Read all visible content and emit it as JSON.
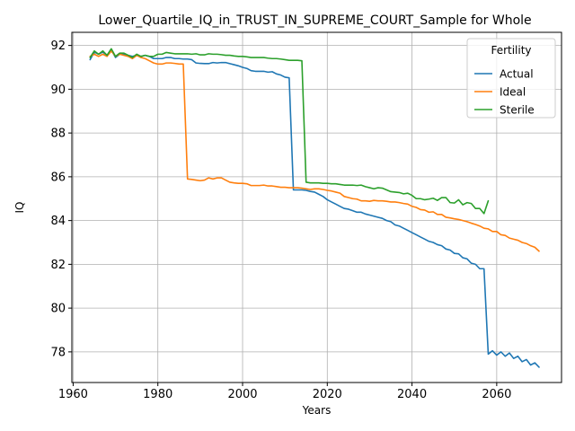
{
  "chart_data": {
    "type": "line",
    "title": "Lower_Quartile_IQ_in_TRUST_IN_SUPREME_COURT_Sample for Whole",
    "xlabel": "Years",
    "ylabel": "IQ",
    "xlim": [
      1959.7,
      2075.3
    ],
    "ylim": [
      76.6,
      92.6
    ],
    "xticks": [
      1960,
      1980,
      2000,
      2020,
      2040,
      2060
    ],
    "yticks": [
      78,
      80,
      82,
      84,
      86,
      88,
      90,
      92
    ],
    "grid": true,
    "legend": {
      "title": "Fertility",
      "position": "top-right",
      "entries": [
        "Actual",
        "Ideal",
        "Sterile"
      ]
    },
    "series": [
      {
        "name": "Actual",
        "color": "#1f77b4",
        "x": [
          1964,
          1965,
          1966,
          1967,
          1968,
          1969,
          1970,
          1971,
          1972,
          1973,
          1974,
          1975,
          1976,
          1977,
          1978,
          1979,
          1980,
          1981,
          1982,
          1983,
          1984,
          1985,
          1986,
          1987,
          1988,
          1989,
          1990,
          1991,
          1992,
          1993,
          1994,
          1995,
          1996,
          1997,
          1998,
          1999,
          2000,
          2001,
          2002,
          2003,
          2004,
          2005,
          2006,
          2007,
          2008,
          2009,
          2010,
          2011,
          2012,
          2013,
          2014,
          2015,
          2016,
          2017,
          2018,
          2019,
          2020,
          2021,
          2022,
          2023,
          2024,
          2025,
          2026,
          2027,
          2028,
          2029,
          2030,
          2031,
          2032,
          2033,
          2034,
          2035,
          2036,
          2037,
          2038,
          2039,
          2040,
          2041,
          2042,
          2043,
          2044,
          2045,
          2046,
          2047,
          2048,
          2049,
          2050,
          2051,
          2052,
          2053,
          2054,
          2055,
          2056,
          2057,
          2058,
          2059,
          2060,
          2061,
          2062,
          2063,
          2064,
          2065,
          2066,
          2067,
          2068,
          2069,
          2070
        ],
        "values": [
          91.35,
          91.7,
          91.6,
          91.7,
          91.55,
          91.8,
          91.45,
          91.6,
          91.6,
          91.55,
          91.5,
          91.55,
          91.5,
          91.55,
          91.5,
          91.4,
          91.4,
          91.4,
          91.45,
          91.45,
          91.4,
          91.4,
          91.38,
          91.38,
          91.35,
          91.2,
          91.18,
          91.17,
          91.17,
          91.22,
          91.2,
          91.22,
          91.22,
          91.17,
          91.12,
          91.07,
          91.0,
          90.95,
          90.85,
          90.82,
          90.82,
          90.82,
          90.78,
          90.8,
          90.7,
          90.65,
          90.55,
          90.52,
          85.4,
          85.4,
          85.4,
          85.38,
          85.33,
          85.3,
          85.2,
          85.1,
          84.95,
          84.85,
          84.75,
          84.65,
          84.55,
          84.52,
          84.45,
          84.38,
          84.38,
          84.3,
          84.25,
          84.2,
          84.15,
          84.1,
          84.0,
          83.95,
          83.8,
          83.75,
          83.65,
          83.55,
          83.45,
          83.35,
          83.25,
          83.15,
          83.05,
          83.0,
          82.9,
          82.85,
          82.7,
          82.65,
          82.5,
          82.48,
          82.3,
          82.25,
          82.05,
          82.0,
          81.8,
          81.8,
          77.9,
          78.05,
          77.85,
          78.0,
          77.8,
          77.95,
          77.7,
          77.8,
          77.55,
          77.65,
          77.4,
          77.5,
          77.3
        ]
      },
      {
        "name": "Ideal",
        "color": "#ff7f0e",
        "x": [
          1964,
          1965,
          1966,
          1967,
          1968,
          1969,
          1970,
          1971,
          1972,
          1973,
          1974,
          1975,
          1976,
          1977,
          1978,
          1979,
          1980,
          1981,
          1982,
          1983,
          1984,
          1985,
          1986,
          1987,
          1988,
          1989,
          1990,
          1991,
          1992,
          1993,
          1994,
          1995,
          1996,
          1997,
          1998,
          1999,
          2000,
          2001,
          2002,
          2003,
          2004,
          2005,
          2006,
          2007,
          2008,
          2009,
          2010,
          2011,
          2012,
          2013,
          2014,
          2015,
          2016,
          2017,
          2018,
          2019,
          2020,
          2021,
          2022,
          2023,
          2024,
          2025,
          2026,
          2027,
          2028,
          2029,
          2030,
          2031,
          2032,
          2033,
          2034,
          2035,
          2036,
          2037,
          2038,
          2039,
          2040,
          2041,
          2042,
          2043,
          2044,
          2045,
          2046,
          2047,
          2048,
          2049,
          2050,
          2051,
          2052,
          2053,
          2054,
          2055,
          2056,
          2057,
          2058,
          2059,
          2060,
          2061,
          2062,
          2063,
          2064,
          2065,
          2066,
          2067,
          2068,
          2069,
          2070
        ],
        "values": [
          91.5,
          91.6,
          91.5,
          91.6,
          91.5,
          91.75,
          91.5,
          91.6,
          91.55,
          91.5,
          91.4,
          91.55,
          91.45,
          91.4,
          91.3,
          91.2,
          91.15,
          91.15,
          91.2,
          91.2,
          91.18,
          91.15,
          91.15,
          85.9,
          85.88,
          85.85,
          85.82,
          85.85,
          85.95,
          85.9,
          85.95,
          85.95,
          85.85,
          85.75,
          85.72,
          85.7,
          85.7,
          85.68,
          85.6,
          85.6,
          85.6,
          85.62,
          85.58,
          85.58,
          85.55,
          85.52,
          85.52,
          85.5,
          85.5,
          85.5,
          85.48,
          85.45,
          85.42,
          85.45,
          85.45,
          85.42,
          85.38,
          85.35,
          85.3,
          85.25,
          85.1,
          85.05,
          85.0,
          84.98,
          84.9,
          84.9,
          84.88,
          84.92,
          84.9,
          84.9,
          84.88,
          84.85,
          84.85,
          84.82,
          84.78,
          84.75,
          84.65,
          84.6,
          84.5,
          84.48,
          84.38,
          84.4,
          84.28,
          84.28,
          84.15,
          84.12,
          84.08,
          84.05,
          84.0,
          83.95,
          83.88,
          83.82,
          83.75,
          83.65,
          83.62,
          83.5,
          83.5,
          83.35,
          83.32,
          83.2,
          83.15,
          83.1,
          83.0,
          82.95,
          82.85,
          82.78,
          82.6
        ]
      },
      {
        "name": "Sterile",
        "color": "#2ca02c",
        "x": [
          1964,
          1965,
          1966,
          1967,
          1968,
          1969,
          1970,
          1971,
          1972,
          1973,
          1974,
          1975,
          1976,
          1977,
          1978,
          1979,
          1980,
          1981,
          1982,
          1983,
          1984,
          1985,
          1986,
          1987,
          1988,
          1989,
          1990,
          1991,
          1992,
          1993,
          1994,
          1995,
          1996,
          1997,
          1998,
          1999,
          2000,
          2001,
          2002,
          2003,
          2004,
          2005,
          2006,
          2007,
          2008,
          2009,
          2010,
          2011,
          2012,
          2013,
          2014,
          2015,
          2016,
          2017,
          2018,
          2019,
          2020,
          2021,
          2022,
          2023,
          2024,
          2025,
          2026,
          2027,
          2028,
          2029,
          2030,
          2031,
          2032,
          2033,
          2034,
          2035,
          2036,
          2037,
          2038,
          2039,
          2040,
          2041,
          2042,
          2043,
          2044,
          2045,
          2046,
          2047,
          2048,
          2049,
          2050,
          2051,
          2052,
          2053,
          2054,
          2055,
          2056,
          2057,
          2058
        ],
        "values": [
          91.45,
          91.75,
          91.6,
          91.75,
          91.55,
          91.85,
          91.5,
          91.65,
          91.65,
          91.55,
          91.45,
          91.6,
          91.5,
          91.55,
          91.5,
          91.5,
          91.6,
          91.6,
          91.68,
          91.65,
          91.62,
          91.62,
          91.62,
          91.62,
          91.6,
          91.62,
          91.57,
          91.57,
          91.62,
          91.6,
          91.6,
          91.58,
          91.55,
          91.55,
          91.52,
          91.5,
          91.5,
          91.48,
          91.45,
          91.45,
          91.45,
          91.45,
          91.42,
          91.4,
          91.4,
          91.38,
          91.35,
          91.32,
          91.32,
          91.32,
          91.3,
          85.75,
          85.72,
          85.72,
          85.72,
          85.7,
          85.7,
          85.68,
          85.68,
          85.65,
          85.62,
          85.62,
          85.62,
          85.6,
          85.62,
          85.55,
          85.5,
          85.45,
          85.5,
          85.48,
          85.4,
          85.32,
          85.3,
          85.28,
          85.22,
          85.25,
          85.15,
          85.0,
          85.0,
          84.95,
          84.98,
          85.02,
          84.92,
          85.05,
          85.05,
          84.82,
          84.8,
          84.95,
          84.72,
          84.82,
          84.78,
          84.55,
          84.55,
          84.32,
          84.9
        ]
      }
    ]
  }
}
